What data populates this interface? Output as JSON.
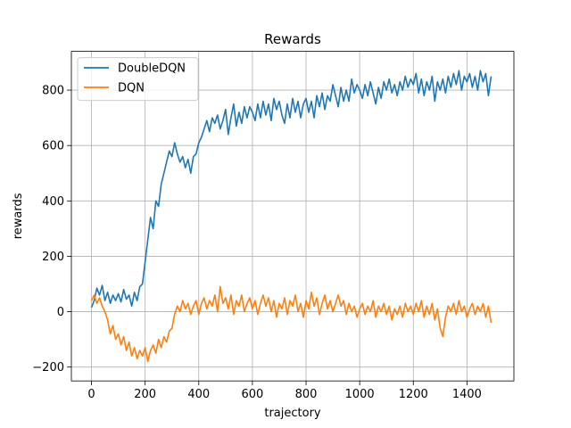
{
  "chart_data": {
    "type": "line",
    "title": "Rewards",
    "xlabel": "trajectory",
    "ylabel": "rewards",
    "xlim": [
      -75,
      1575
    ],
    "ylim": [
      -250,
      940
    ],
    "xticks": [
      0,
      200,
      400,
      600,
      800,
      1000,
      1200,
      1400
    ],
    "yticks": [
      -200,
      0,
      200,
      400,
      600,
      800
    ],
    "xtick_labels": [
      "0",
      "200",
      "400",
      "600",
      "800",
      "1000",
      "1200",
      "1400"
    ],
    "ytick_labels": [
      "−200",
      "0",
      "200",
      "400",
      "600",
      "800"
    ],
    "grid": true,
    "legend_position": "top-left",
    "series": [
      {
        "name": "DoubleDQN",
        "color": "#1f77b4",
        "points": [
          [
            0,
            15
          ],
          [
            10,
            40
          ],
          [
            20,
            85
          ],
          [
            30,
            60
          ],
          [
            40,
            95
          ],
          [
            50,
            40
          ],
          [
            60,
            70
          ],
          [
            70,
            30
          ],
          [
            80,
            60
          ],
          [
            90,
            40
          ],
          [
            100,
            65
          ],
          [
            110,
            35
          ],
          [
            120,
            80
          ],
          [
            130,
            45
          ],
          [
            140,
            60
          ],
          [
            150,
            20
          ],
          [
            160,
            70
          ],
          [
            170,
            40
          ],
          [
            180,
            90
          ],
          [
            190,
            100
          ],
          [
            200,
            180
          ],
          [
            210,
            260
          ],
          [
            220,
            340
          ],
          [
            230,
            300
          ],
          [
            240,
            400
          ],
          [
            250,
            380
          ],
          [
            260,
            460
          ],
          [
            270,
            500
          ],
          [
            280,
            540
          ],
          [
            290,
            580
          ],
          [
            300,
            560
          ],
          [
            310,
            610
          ],
          [
            320,
            570
          ],
          [
            330,
            540
          ],
          [
            340,
            560
          ],
          [
            350,
            520
          ],
          [
            360,
            550
          ],
          [
            370,
            500
          ],
          [
            380,
            560
          ],
          [
            390,
            570
          ],
          [
            400,
            610
          ],
          [
            410,
            630
          ],
          [
            420,
            660
          ],
          [
            430,
            690
          ],
          [
            440,
            650
          ],
          [
            450,
            700
          ],
          [
            460,
            680
          ],
          [
            470,
            710
          ],
          [
            480,
            660
          ],
          [
            490,
            690
          ],
          [
            500,
            730
          ],
          [
            510,
            640
          ],
          [
            520,
            700
          ],
          [
            530,
            750
          ],
          [
            540,
            670
          ],
          [
            550,
            720
          ],
          [
            560,
            680
          ],
          [
            570,
            740
          ],
          [
            580,
            700
          ],
          [
            590,
            740
          ],
          [
            600,
            720
          ],
          [
            610,
            690
          ],
          [
            620,
            750
          ],
          [
            630,
            700
          ],
          [
            640,
            760
          ],
          [
            650,
            710
          ],
          [
            660,
            750
          ],
          [
            670,
            690
          ],
          [
            680,
            770
          ],
          [
            690,
            730
          ],
          [
            700,
            760
          ],
          [
            710,
            710
          ],
          [
            720,
            680
          ],
          [
            730,
            750
          ],
          [
            740,
            700
          ],
          [
            750,
            770
          ],
          [
            760,
            720
          ],
          [
            770,
            760
          ],
          [
            780,
            700
          ],
          [
            790,
            750
          ],
          [
            800,
            770
          ],
          [
            810,
            720
          ],
          [
            820,
            760
          ],
          [
            830,
            700
          ],
          [
            840,
            780
          ],
          [
            850,
            740
          ],
          [
            860,
            790
          ],
          [
            870,
            730
          ],
          [
            880,
            780
          ],
          [
            890,
            760
          ],
          [
            900,
            820
          ],
          [
            910,
            780
          ],
          [
            920,
            740
          ],
          [
            930,
            810
          ],
          [
            940,
            760
          ],
          [
            950,
            800
          ],
          [
            960,
            760
          ],
          [
            970,
            840
          ],
          [
            980,
            790
          ],
          [
            990,
            820
          ],
          [
            1000,
            800
          ],
          [
            1010,
            770
          ],
          [
            1020,
            820
          ],
          [
            1030,
            780
          ],
          [
            1040,
            830
          ],
          [
            1050,
            790
          ],
          [
            1060,
            750
          ],
          [
            1070,
            810
          ],
          [
            1080,
            770
          ],
          [
            1090,
            830
          ],
          [
            1100,
            800
          ],
          [
            1110,
            840
          ],
          [
            1120,
            790
          ],
          [
            1130,
            820
          ],
          [
            1140,
            780
          ],
          [
            1150,
            830
          ],
          [
            1160,
            800
          ],
          [
            1170,
            850
          ],
          [
            1180,
            810
          ],
          [
            1190,
            840
          ],
          [
            1200,
            820
          ],
          [
            1210,
            860
          ],
          [
            1220,
            790
          ],
          [
            1230,
            840
          ],
          [
            1240,
            780
          ],
          [
            1250,
            830
          ],
          [
            1260,
            800
          ],
          [
            1270,
            850
          ],
          [
            1280,
            760
          ],
          [
            1290,
            830
          ],
          [
            1300,
            800
          ],
          [
            1310,
            840
          ],
          [
            1320,
            790
          ],
          [
            1330,
            850
          ],
          [
            1340,
            810
          ],
          [
            1350,
            860
          ],
          [
            1360,
            820
          ],
          [
            1370,
            870
          ],
          [
            1380,
            800
          ],
          [
            1390,
            850
          ],
          [
            1400,
            830
          ],
          [
            1410,
            860
          ],
          [
            1420,
            810
          ],
          [
            1430,
            850
          ],
          [
            1440,
            800
          ],
          [
            1450,
            870
          ],
          [
            1460,
            830
          ],
          [
            1470,
            860
          ],
          [
            1480,
            780
          ],
          [
            1490,
            850
          ]
        ]
      },
      {
        "name": "DQN",
        "color": "#ff7f0e",
        "points": [
          [
            0,
            40
          ],
          [
            10,
            60
          ],
          [
            20,
            30
          ],
          [
            30,
            50
          ],
          [
            40,
            20
          ],
          [
            50,
            0
          ],
          [
            60,
            -30
          ],
          [
            70,
            -80
          ],
          [
            80,
            -50
          ],
          [
            90,
            -100
          ],
          [
            100,
            -80
          ],
          [
            110,
            -120
          ],
          [
            120,
            -90
          ],
          [
            130,
            -140
          ],
          [
            140,
            -110
          ],
          [
            150,
            -160
          ],
          [
            160,
            -130
          ],
          [
            170,
            -170
          ],
          [
            180,
            -140
          ],
          [
            190,
            -160
          ],
          [
            200,
            -130
          ],
          [
            210,
            -180
          ],
          [
            220,
            -140
          ],
          [
            230,
            -120
          ],
          [
            240,
            -150
          ],
          [
            250,
            -100
          ],
          [
            260,
            -130
          ],
          [
            270,
            -90
          ],
          [
            280,
            -110
          ],
          [
            290,
            -70
          ],
          [
            300,
            -60
          ],
          [
            310,
            -10
          ],
          [
            320,
            20
          ],
          [
            330,
            0
          ],
          [
            340,
            40
          ],
          [
            350,
            10
          ],
          [
            360,
            30
          ],
          [
            370,
            -10
          ],
          [
            380,
            20
          ],
          [
            390,
            40
          ],
          [
            400,
            -10
          ],
          [
            410,
            30
          ],
          [
            420,
            50
          ],
          [
            430,
            10
          ],
          [
            440,
            40
          ],
          [
            450,
            20
          ],
          [
            460,
            60
          ],
          [
            470,
            0
          ],
          [
            480,
            90
          ],
          [
            490,
            30
          ],
          [
            500,
            50
          ],
          [
            510,
            10
          ],
          [
            520,
            60
          ],
          [
            530,
            -10
          ],
          [
            540,
            40
          ],
          [
            550,
            20
          ],
          [
            560,
            60
          ],
          [
            570,
            0
          ],
          [
            580,
            30
          ],
          [
            590,
            50
          ],
          [
            600,
            10
          ],
          [
            610,
            40
          ],
          [
            620,
            -10
          ],
          [
            630,
            30
          ],
          [
            640,
            60
          ],
          [
            650,
            20
          ],
          [
            660,
            50
          ],
          [
            670,
            0
          ],
          [
            680,
            40
          ],
          [
            690,
            -20
          ],
          [
            700,
            30
          ],
          [
            710,
            10
          ],
          [
            720,
            50
          ],
          [
            730,
            -10
          ],
          [
            740,
            40
          ],
          [
            750,
            20
          ],
          [
            760,
            60
          ],
          [
            770,
            0
          ],
          [
            780,
            30
          ],
          [
            790,
            -20
          ],
          [
            800,
            40
          ],
          [
            810,
            10
          ],
          [
            820,
            70
          ],
          [
            830,
            20
          ],
          [
            840,
            50
          ],
          [
            850,
            -10
          ],
          [
            860,
            30
          ],
          [
            870,
            60
          ],
          [
            880,
            10
          ],
          [
            890,
            40
          ],
          [
            900,
            0
          ],
          [
            910,
            30
          ],
          [
            920,
            60
          ],
          [
            930,
            20
          ],
          [
            940,
            40
          ],
          [
            950,
            -10
          ],
          [
            960,
            30
          ],
          [
            970,
            0
          ],
          [
            980,
            20
          ],
          [
            990,
            -20
          ],
          [
            1000,
            10
          ],
          [
            1010,
            30
          ],
          [
            1020,
            -10
          ],
          [
            1030,
            20
          ],
          [
            1040,
            0
          ],
          [
            1050,
            40
          ],
          [
            1060,
            -20
          ],
          [
            1070,
            20
          ],
          [
            1080,
            0
          ],
          [
            1090,
            30
          ],
          [
            1100,
            -10
          ],
          [
            1110,
            20
          ],
          [
            1120,
            -30
          ],
          [
            1130,
            10
          ],
          [
            1140,
            -10
          ],
          [
            1150,
            20
          ],
          [
            1160,
            -20
          ],
          [
            1170,
            30
          ],
          [
            1180,
            0
          ],
          [
            1190,
            20
          ],
          [
            1200,
            -10
          ],
          [
            1210,
            30
          ],
          [
            1220,
            0
          ],
          [
            1230,
            40
          ],
          [
            1240,
            -20
          ],
          [
            1250,
            20
          ],
          [
            1260,
            -10
          ],
          [
            1270,
            30
          ],
          [
            1280,
            -30
          ],
          [
            1290,
            10
          ],
          [
            1300,
            -60
          ],
          [
            1310,
            -90
          ],
          [
            1320,
            -20
          ],
          [
            1330,
            20
          ],
          [
            1340,
            0
          ],
          [
            1350,
            30
          ],
          [
            1360,
            -10
          ],
          [
            1370,
            40
          ],
          [
            1380,
            0
          ],
          [
            1390,
            20
          ],
          [
            1400,
            -20
          ],
          [
            1410,
            10
          ],
          [
            1420,
            30
          ],
          [
            1430,
            -10
          ],
          [
            1440,
            20
          ],
          [
            1450,
            0
          ],
          [
            1460,
            30
          ],
          [
            1470,
            -20
          ],
          [
            1480,
            20
          ],
          [
            1490,
            -40
          ]
        ]
      }
    ]
  }
}
